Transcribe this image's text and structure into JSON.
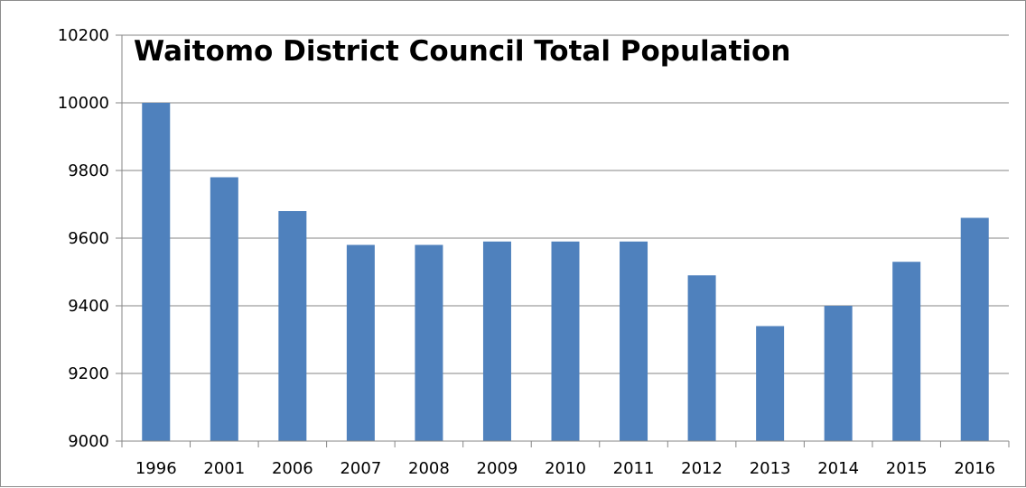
{
  "chart_data": {
    "type": "bar",
    "title": "Waitomo District Council Total Population",
    "xlabel": "",
    "ylabel": "",
    "categories": [
      "1996",
      "2001",
      "2006",
      "2007",
      "2008",
      "2009",
      "2010",
      "2011",
      "2012",
      "2013",
      "2014",
      "2015",
      "2016"
    ],
    "values": [
      10000,
      9780,
      9680,
      9580,
      9580,
      9590,
      9590,
      9590,
      9490,
      9340,
      9400,
      9530,
      9660
    ],
    "ylim": [
      9000,
      10200
    ],
    "yticks": [
      9000,
      9200,
      9400,
      9600,
      9800,
      10000,
      10200
    ],
    "grid": true,
    "legend": "none",
    "colors": {
      "bar": "#4f81bd",
      "grid": "#868686",
      "axis": "#868686"
    }
  }
}
